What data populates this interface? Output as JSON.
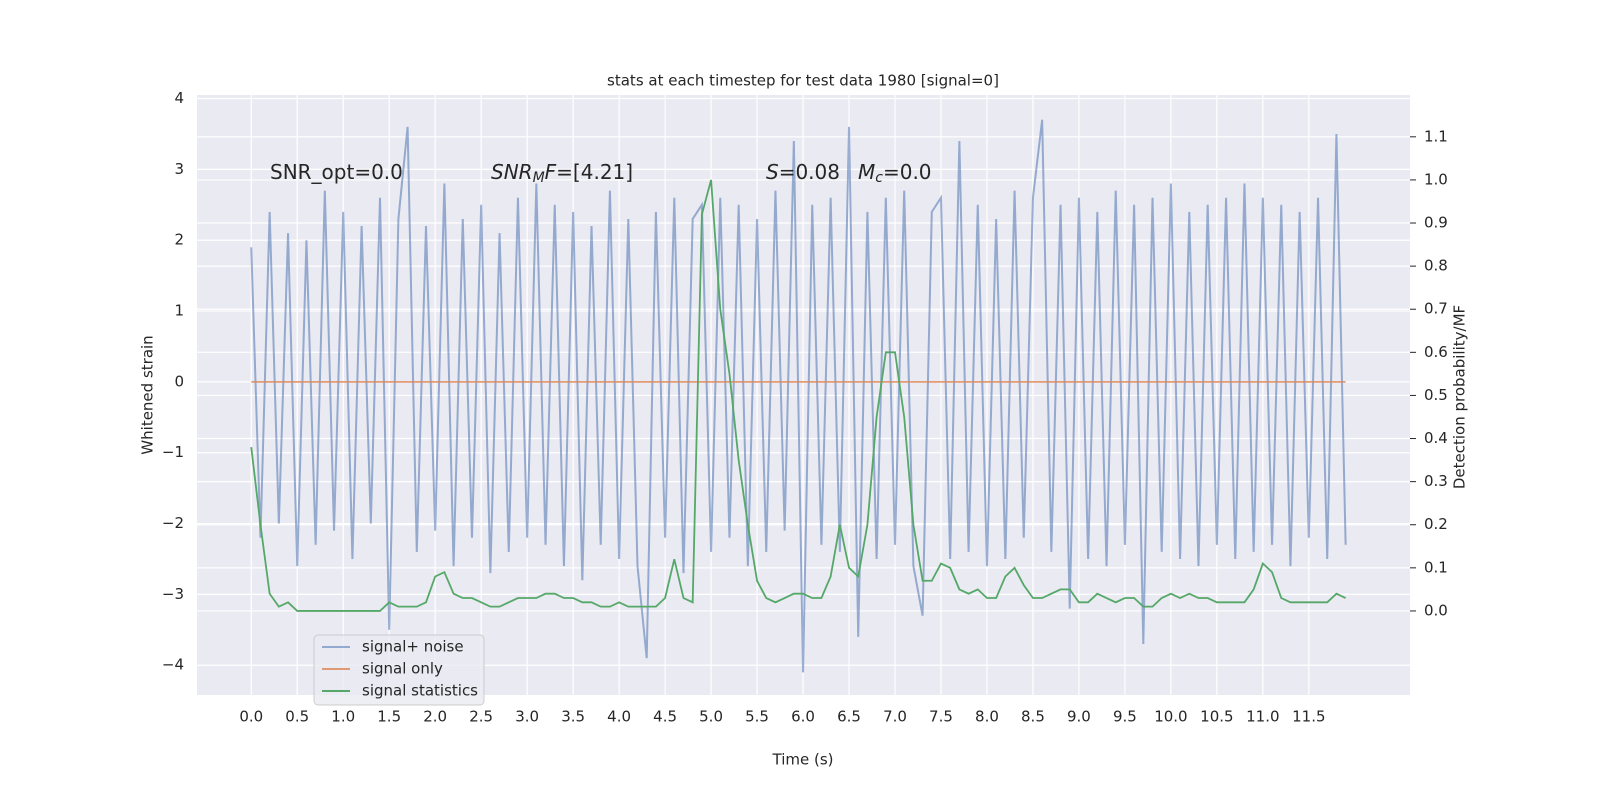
{
  "chart_data": {
    "type": "line",
    "title": "stats at each timestep for test data 1980 [signal=0]",
    "xlabel": "Time (s)",
    "ylabel": "Whitened strain",
    "y2label": "Detection probability/MF",
    "annotations": [
      [
        {
          "t": "SNR_opt=0.0"
        }
      ],
      [
        {
          "t": "SNR",
          "italic": true
        },
        {
          "t": "M",
          "italic": true,
          "sub": true
        },
        {
          "t": "F",
          "italic": true
        },
        {
          "t": "=[4.21]"
        }
      ],
      [
        {
          "t": "S",
          "italic": true
        },
        {
          "t": "=0.08"
        }
      ],
      [
        {
          "t": "M",
          "italic": true
        },
        {
          "t": "c",
          "italic": true,
          "sub": true
        },
        {
          "t": "=0.0"
        }
      ]
    ],
    "x": [
      0.0,
      0.1,
      0.2,
      0.3,
      0.4,
      0.5,
      0.6,
      0.7,
      0.8,
      0.9,
      1.0,
      1.1,
      1.2,
      1.3,
      1.4,
      1.5,
      1.6,
      1.7,
      1.8,
      1.9,
      2.0,
      2.1,
      2.2,
      2.3,
      2.4,
      2.5,
      2.6,
      2.7,
      2.8,
      2.9,
      3.0,
      3.1,
      3.2,
      3.3,
      3.4,
      3.5,
      3.6,
      3.7,
      3.8,
      3.9,
      4.0,
      4.1,
      4.2,
      4.3,
      4.4,
      4.5,
      4.6,
      4.7,
      4.8,
      4.9,
      5.0,
      5.1,
      5.2,
      5.3,
      5.4,
      5.5,
      5.6,
      5.7,
      5.8,
      5.9,
      6.0,
      6.1,
      6.2,
      6.3,
      6.4,
      6.5,
      6.6,
      6.7,
      6.8,
      6.9,
      7.0,
      7.1,
      7.2,
      7.3,
      7.4,
      7.5,
      7.6,
      7.7,
      7.8,
      7.9,
      8.0,
      8.1,
      8.2,
      8.3,
      8.4,
      8.5,
      8.6,
      8.7,
      8.8,
      8.9,
      9.0,
      9.1,
      9.2,
      9.3,
      9.4,
      9.5,
      9.6,
      9.7,
      9.8,
      9.9,
      10.0,
      10.1,
      10.2,
      10.3,
      10.4,
      10.5,
      10.6,
      10.7,
      10.8,
      10.9,
      11.0,
      11.1,
      11.2,
      11.3,
      11.4,
      11.5,
      11.6,
      11.7,
      11.8,
      11.9
    ],
    "series": [
      {
        "name": "signal+ noise",
        "color": "#4c72b0",
        "opacity": 0.55,
        "axis": "y",
        "values": [
          1.9,
          -2.2,
          2.4,
          -2.0,
          2.1,
          -2.6,
          2.0,
          -2.3,
          2.7,
          -2.1,
          2.4,
          -2.5,
          2.2,
          -2.0,
          2.6,
          -3.5,
          2.3,
          3.6,
          -2.4,
          2.2,
          -2.1,
          2.8,
          -2.6,
          2.3,
          -2.2,
          2.5,
          -2.7,
          2.1,
          -2.4,
          2.6,
          -2.2,
          2.8,
          -2.3,
          2.5,
          -2.6,
          2.4,
          -2.8,
          2.2,
          -2.3,
          2.7,
          -2.5,
          2.3,
          -2.6,
          -3.9,
          2.4,
          -2.2,
          2.6,
          -2.7,
          2.3,
          2.5,
          -2.4,
          2.6,
          -2.2,
          2.5,
          -2.6,
          2.3,
          -2.4,
          2.7,
          -2.1,
          3.4,
          -4.1,
          2.5,
          -2.3,
          2.6,
          -2.4,
          3.6,
          -3.6,
          2.4,
          -2.5,
          2.6,
          -2.3,
          2.7,
          -2.6,
          -3.3,
          2.4,
          2.6,
          -2.5,
          3.4,
          -2.4,
          2.5,
          -2.6,
          2.3,
          -2.5,
          2.7,
          -2.2,
          2.6,
          3.7,
          -2.4,
          2.5,
          -3.2,
          2.6,
          -2.5,
          2.4,
          -2.6,
          2.7,
          -2.3,
          2.5,
          -3.7,
          2.6,
          -2.4,
          2.8,
          -2.5,
          2.4,
          -2.6,
          2.5,
          -2.3,
          2.6,
          -2.5,
          2.8,
          -2.4,
          2.6,
          -2.3,
          2.5,
          -2.6,
          2.4,
          -2.2,
          2.6,
          -2.5,
          3.5,
          -2.3
        ]
      },
      {
        "name": "signal only",
        "color": "#dd8452",
        "opacity": 0.8,
        "axis": "y",
        "values": [
          0,
          0,
          0,
          0,
          0,
          0,
          0,
          0,
          0,
          0,
          0,
          0,
          0,
          0,
          0,
          0,
          0,
          0,
          0,
          0,
          0,
          0,
          0,
          0,
          0,
          0,
          0,
          0,
          0,
          0,
          0,
          0,
          0,
          0,
          0,
          0,
          0,
          0,
          0,
          0,
          0,
          0,
          0,
          0,
          0,
          0,
          0,
          0,
          0,
          0,
          0,
          0,
          0,
          0,
          0,
          0,
          0,
          0,
          0,
          0,
          0,
          0,
          0,
          0,
          0,
          0,
          0,
          0,
          0,
          0,
          0,
          0,
          0,
          0,
          0,
          0,
          0,
          0,
          0,
          0,
          0,
          0,
          0,
          0,
          0,
          0,
          0,
          0,
          0,
          0,
          0,
          0,
          0,
          0,
          0,
          0,
          0,
          0,
          0,
          0,
          0,
          0,
          0,
          0,
          0,
          0,
          0,
          0,
          0,
          0,
          0,
          0,
          0,
          0,
          0,
          0,
          0,
          0,
          0,
          0
        ]
      },
      {
        "name": "signal statistics",
        "color": "#55a868",
        "opacity": 1,
        "axis": "y2",
        "values": [
          0.38,
          0.2,
          0.04,
          0.01,
          0.02,
          0.0,
          0.0,
          0.0,
          0.0,
          0.0,
          0.0,
          0.0,
          0.0,
          0.0,
          0.0,
          0.02,
          0.01,
          0.01,
          0.01,
          0.02,
          0.08,
          0.09,
          0.04,
          0.03,
          0.03,
          0.02,
          0.01,
          0.01,
          0.02,
          0.03,
          0.03,
          0.03,
          0.04,
          0.04,
          0.03,
          0.03,
          0.02,
          0.02,
          0.01,
          0.01,
          0.02,
          0.01,
          0.01,
          0.01,
          0.01,
          0.03,
          0.12,
          0.03,
          0.02,
          0.92,
          1.0,
          0.7,
          0.55,
          0.35,
          0.2,
          0.07,
          0.03,
          0.02,
          0.03,
          0.04,
          0.04,
          0.03,
          0.03,
          0.08,
          0.2,
          0.1,
          0.08,
          0.2,
          0.45,
          0.6,
          0.6,
          0.45,
          0.2,
          0.07,
          0.07,
          0.11,
          0.1,
          0.05,
          0.04,
          0.05,
          0.03,
          0.03,
          0.08,
          0.1,
          0.06,
          0.03,
          0.03,
          0.04,
          0.05,
          0.05,
          0.02,
          0.02,
          0.04,
          0.03,
          0.02,
          0.03,
          0.03,
          0.01,
          0.01,
          0.03,
          0.04,
          0.03,
          0.04,
          0.03,
          0.03,
          0.02,
          0.02,
          0.02,
          0.02,
          0.05,
          0.11,
          0.09,
          0.03,
          0.02,
          0.02,
          0.02,
          0.02,
          0.02,
          0.04,
          0.03
        ]
      }
    ],
    "xlim": [
      -0.59,
      12.6
    ],
    "ylim": [
      -4.42,
      4.05
    ],
    "y2lim": [
      -0.195,
      1.197
    ],
    "xticks": [
      {
        "value": 0,
        "label": "0.0"
      },
      {
        "value": 0.5,
        "label": "0.5"
      },
      {
        "value": 1,
        "label": "1.0"
      },
      {
        "value": 1.5,
        "label": "1.5"
      },
      {
        "value": 2,
        "label": "2.0"
      },
      {
        "value": 2.5,
        "label": "2.5"
      },
      {
        "value": 3,
        "label": "3.0"
      },
      {
        "value": 3.5,
        "label": "3.5"
      },
      {
        "value": 4,
        "label": "4.0"
      },
      {
        "value": 4.5,
        "label": "4.5"
      },
      {
        "value": 5,
        "label": "5.0"
      },
      {
        "value": 5.5,
        "label": "5.5"
      },
      {
        "value": 6,
        "label": "6.0"
      },
      {
        "value": 6.5,
        "label": "6.5"
      },
      {
        "value": 7,
        "label": "7.0"
      },
      {
        "value": 7.5,
        "label": "7.5"
      },
      {
        "value": 8,
        "label": "8.0"
      },
      {
        "value": 8.5,
        "label": "8.5"
      },
      {
        "value": 9,
        "label": "9.0"
      },
      {
        "value": 9.5,
        "label": "9.5"
      },
      {
        "value": 10,
        "label": "10.0"
      },
      {
        "value": 10.5,
        "label": "10.5"
      },
      {
        "value": 11,
        "label": "11.0"
      },
      {
        "value": 11.5,
        "label": "11.5"
      }
    ],
    "yticks": [
      {
        "value": -4,
        "label": "−4"
      },
      {
        "value": -3,
        "label": "−3"
      },
      {
        "value": -2,
        "label": "−2"
      },
      {
        "value": -1,
        "label": "−1"
      },
      0,
      1,
      2,
      3,
      4
    ],
    "y2ticks": [
      {
        "value": 0,
        "label": "0.0"
      },
      {
        "value": 0.1,
        "label": "0.1"
      },
      {
        "value": 0.2,
        "label": "0.2"
      },
      {
        "value": 0.3,
        "label": "0.3"
      },
      {
        "value": 0.4,
        "label": "0.4"
      },
      {
        "value": 0.5,
        "label": "0.5"
      },
      {
        "value": 0.6,
        "label": "0.6"
      },
      {
        "value": 0.7,
        "label": "0.7"
      },
      {
        "value": 0.8,
        "label": "0.8"
      },
      {
        "value": 0.9,
        "label": "0.9"
      },
      {
        "value": 1,
        "label": "1.0"
      },
      {
        "value": 1.1,
        "label": "1.1"
      }
    ],
    "grid": true,
    "legend": "lower left"
  }
}
